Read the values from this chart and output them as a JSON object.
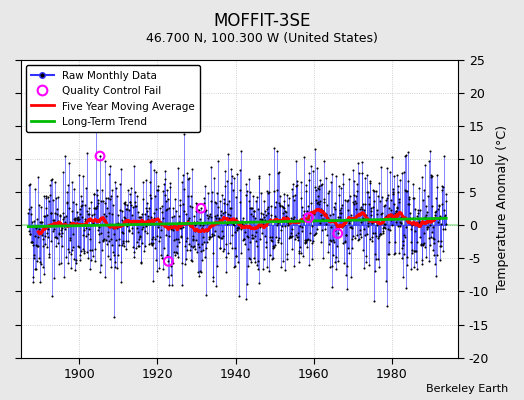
{
  "title": "MOFFIT-3SE",
  "subtitle": "46.700 N, 100.300 W (United States)",
  "ylabel": "Temperature Anomaly (°C)",
  "credit": "Berkeley Earth",
  "ylim": [
    -20,
    25
  ],
  "yticks": [
    -20,
    -15,
    -10,
    -5,
    0,
    5,
    10,
    15,
    20,
    25
  ],
  "xlim": [
    1885,
    1997
  ],
  "xticks": [
    1900,
    1920,
    1940,
    1960,
    1980
  ],
  "seed": 42,
  "n_years": 107,
  "start_year": 1887,
  "bg_color": "#e8e8e8",
  "plot_bg_color": "#ffffff",
  "line_color": "#3333ff",
  "ma_color": "#ff0000",
  "trend_color": "#00bb00",
  "qc_color": "#ff00ff",
  "dot_color": "#000000",
  "noise_std": 4.2,
  "ma_window": 60,
  "qc_indices": [
    220,
    430,
    530,
    860,
    950
  ]
}
